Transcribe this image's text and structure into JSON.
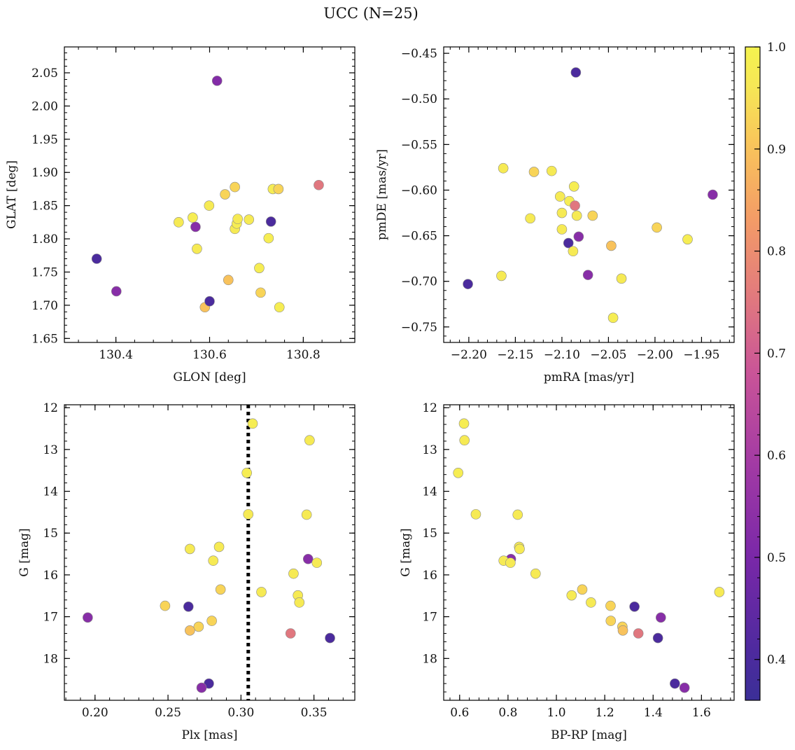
{
  "figure": {
    "title": "UCC (N=25)",
    "colorbar": {
      "min": 0.36,
      "max": 1.0,
      "ticks": [
        "0.4",
        "0.5",
        "0.6",
        "0.7",
        "0.8",
        "0.9",
        "1.0"
      ],
      "tick_values": [
        0.4,
        0.5,
        0.6,
        0.7,
        0.8,
        0.9,
        1.0
      ],
      "colormap": "plasma"
    }
  },
  "chart_data": [
    {
      "type": "scatter",
      "xlabel": "GLON [deg]",
      "ylabel": "GLAT [deg]",
      "xlim": [
        130.29,
        130.91
      ],
      "ylim": [
        1.644,
        2.089
      ],
      "invert_y": false,
      "xticks": [
        130.4,
        130.6,
        130.8
      ],
      "xtick_labels": [
        "130.4",
        "130.6",
        "130.8"
      ],
      "yticks": [
        1.65,
        1.7,
        1.75,
        1.8,
        1.85,
        1.9,
        1.95,
        2.0,
        2.05
      ],
      "ytick_labels": [
        "1.65",
        "1.70",
        "1.75",
        "1.80",
        "1.85",
        "1.90",
        "1.95",
        "2.00",
        "2.05"
      ],
      "points": [
        {
          "x": 130.616,
          "y": 2.038,
          "c": 0.52
        },
        {
          "x": 130.359,
          "y": 1.77,
          "c": 0.4
        },
        {
          "x": 130.401,
          "y": 1.721,
          "c": 0.53
        },
        {
          "x": 130.534,
          "y": 1.825,
          "c": 0.97
        },
        {
          "x": 130.564,
          "y": 1.832,
          "c": 0.98
        },
        {
          "x": 130.57,
          "y": 1.818,
          "c": 0.53
        },
        {
          "x": 130.573,
          "y": 1.785,
          "c": 0.97
        },
        {
          "x": 130.59,
          "y": 1.697,
          "c": 0.9
        },
        {
          "x": 130.599,
          "y": 1.85,
          "c": 0.97
        },
        {
          "x": 130.6,
          "y": 1.706,
          "c": 0.4
        },
        {
          "x": 130.633,
          "y": 1.867,
          "c": 0.93
        },
        {
          "x": 130.64,
          "y": 1.738,
          "c": 0.9
        },
        {
          "x": 130.654,
          "y": 1.878,
          "c": 0.93
        },
        {
          "x": 130.654,
          "y": 1.815,
          "c": 0.97
        },
        {
          "x": 130.658,
          "y": 1.823,
          "c": 0.98
        },
        {
          "x": 130.66,
          "y": 1.83,
          "c": 0.97
        },
        {
          "x": 130.684,
          "y": 1.829,
          "c": 0.97
        },
        {
          "x": 130.706,
          "y": 1.756,
          "c": 0.98
        },
        {
          "x": 130.709,
          "y": 1.719,
          "c": 0.93
        },
        {
          "x": 130.726,
          "y": 1.801,
          "c": 0.98
        },
        {
          "x": 130.731,
          "y": 1.826,
          "c": 0.4
        },
        {
          "x": 130.735,
          "y": 1.875,
          "c": 0.98
        },
        {
          "x": 130.747,
          "y": 1.875,
          "c": 0.93
        },
        {
          "x": 130.749,
          "y": 1.697,
          "c": 0.98
        },
        {
          "x": 130.833,
          "y": 1.881,
          "c": 0.75
        }
      ]
    },
    {
      "type": "scatter",
      "xlabel": "pmRA [mas/yr]",
      "ylabel": "pmDE [mas/yr]",
      "xlim": [
        -2.227,
        -1.915
      ],
      "ylim": [
        -0.767,
        -0.443
      ],
      "invert_y": false,
      "xticks": [
        -2.2,
        -2.15,
        -2.1,
        -2.05,
        -2.0,
        -1.95
      ],
      "xtick_labels": [
        "−2.20",
        "−2.15",
        "−2.10",
        "−2.05",
        "−2.00",
        "−1.95"
      ],
      "yticks": [
        -0.75,
        -0.7,
        -0.65,
        -0.6,
        -0.55,
        -0.5,
        -0.45
      ],
      "ytick_labels": [
        "−0.75",
        "−0.70",
        "−0.65",
        "−0.60",
        "−0.55",
        "−0.50",
        "−0.45"
      ],
      "points": [
        {
          "x": -2.085,
          "y": -0.471,
          "c": 0.4
        },
        {
          "x": -2.163,
          "y": -0.576,
          "c": 0.97
        },
        {
          "x": -2.13,
          "y": -0.58,
          "c": 0.93
        },
        {
          "x": -2.111,
          "y": -0.579,
          "c": 0.97
        },
        {
          "x": -2.087,
          "y": -0.596,
          "c": 0.98
        },
        {
          "x": -2.102,
          "y": -0.607,
          "c": 0.97
        },
        {
          "x": -2.092,
          "y": -0.612,
          "c": 0.98
        },
        {
          "x": -2.086,
          "y": -0.617,
          "c": 0.75
        },
        {
          "x": -1.938,
          "y": -0.605,
          "c": 0.53
        },
        {
          "x": -2.1,
          "y": -0.625,
          "c": 0.97
        },
        {
          "x": -2.084,
          "y": -0.628,
          "c": 0.97
        },
        {
          "x": -2.067,
          "y": -0.628,
          "c": 0.93
        },
        {
          "x": -2.134,
          "y": -0.631,
          "c": 0.97
        },
        {
          "x": -1.998,
          "y": -0.641,
          "c": 0.93
        },
        {
          "x": -2.1,
          "y": -0.643,
          "c": 0.97
        },
        {
          "x": -2.082,
          "y": -0.651,
          "c": 0.53
        },
        {
          "x": -1.965,
          "y": -0.654,
          "c": 0.98
        },
        {
          "x": -2.093,
          "y": -0.658,
          "c": 0.4
        },
        {
          "x": -2.047,
          "y": -0.661,
          "c": 0.9
        },
        {
          "x": -2.088,
          "y": -0.667,
          "c": 0.97
        },
        {
          "x": -2.072,
          "y": -0.693,
          "c": 0.53
        },
        {
          "x": -2.165,
          "y": -0.694,
          "c": 0.97
        },
        {
          "x": -2.036,
          "y": -0.697,
          "c": 0.97
        },
        {
          "x": -2.201,
          "y": -0.703,
          "c": 0.4
        },
        {
          "x": -2.045,
          "y": -0.74,
          "c": 0.98
        }
      ]
    },
    {
      "type": "scatter",
      "xlabel": "Plx [mas]",
      "ylabel": "G [mag]",
      "xlim": [
        0.179,
        0.378
      ],
      "ylim": [
        11.93,
        19.0
      ],
      "invert_y": true,
      "vline": 0.305,
      "xticks": [
        0.2,
        0.25,
        0.3,
        0.35
      ],
      "xtick_labels": [
        "0.20",
        "0.25",
        "0.30",
        "0.35"
      ],
      "yticks": [
        12,
        13,
        14,
        15,
        16,
        17,
        18
      ],
      "ytick_labels": [
        "12",
        "13",
        "14",
        "15",
        "16",
        "17",
        "18"
      ],
      "points": [
        {
          "x": 0.308,
          "y": 12.38,
          "c": 0.98
        },
        {
          "x": 0.347,
          "y": 12.78,
          "c": 0.97
        },
        {
          "x": 0.304,
          "y": 13.56,
          "c": 0.98
        },
        {
          "x": 0.305,
          "y": 14.55,
          "c": 0.97
        },
        {
          "x": 0.345,
          "y": 14.56,
          "c": 0.97
        },
        {
          "x": 0.265,
          "y": 15.38,
          "c": 0.97
        },
        {
          "x": 0.285,
          "y": 15.33,
          "c": 0.97
        },
        {
          "x": 0.346,
          "y": 15.62,
          "c": 0.53
        },
        {
          "x": 0.281,
          "y": 15.66,
          "c": 0.97
        },
        {
          "x": 0.352,
          "y": 15.71,
          "c": 0.97
        },
        {
          "x": 0.336,
          "y": 15.97,
          "c": 0.97
        },
        {
          "x": 0.286,
          "y": 16.35,
          "c": 0.93
        },
        {
          "x": 0.314,
          "y": 16.41,
          "c": 0.97
        },
        {
          "x": 0.339,
          "y": 16.49,
          "c": 0.97
        },
        {
          "x": 0.34,
          "y": 16.66,
          "c": 0.97
        },
        {
          "x": 0.248,
          "y": 16.74,
          "c": 0.93
        },
        {
          "x": 0.264,
          "y": 16.76,
          "c": 0.4
        },
        {
          "x": 0.195,
          "y": 17.02,
          "c": 0.53
        },
        {
          "x": 0.28,
          "y": 17.1,
          "c": 0.93
        },
        {
          "x": 0.271,
          "y": 17.24,
          "c": 0.93
        },
        {
          "x": 0.265,
          "y": 17.33,
          "c": 0.9
        },
        {
          "x": 0.334,
          "y": 17.4,
          "c": 0.75
        },
        {
          "x": 0.361,
          "y": 17.51,
          "c": 0.4
        },
        {
          "x": 0.278,
          "y": 18.6,
          "c": 0.4
        },
        {
          "x": 0.273,
          "y": 18.7,
          "c": 0.53
        }
      ]
    },
    {
      "type": "scatter",
      "xlabel": "BP-RP [mag]",
      "ylabel": "G [mag]",
      "xlim": [
        0.534,
        1.735
      ],
      "ylim": [
        11.93,
        19.0
      ],
      "invert_y": true,
      "xticks": [
        0.6,
        0.8,
        1.0,
        1.2,
        1.4,
        1.6
      ],
      "xtick_labels": [
        "0.6",
        "0.8",
        "1.0",
        "1.2",
        "1.4",
        "1.6"
      ],
      "yticks": [
        12,
        13,
        14,
        15,
        16,
        17,
        18
      ],
      "ytick_labels": [
        "12",
        "13",
        "14",
        "15",
        "16",
        "17",
        "18"
      ],
      "points": [
        {
          "x": 0.618,
          "y": 12.38,
          "c": 0.98
        },
        {
          "x": 0.62,
          "y": 12.78,
          "c": 0.97
        },
        {
          "x": 0.594,
          "y": 13.56,
          "c": 0.98
        },
        {
          "x": 0.667,
          "y": 14.55,
          "c": 0.97
        },
        {
          "x": 0.84,
          "y": 14.56,
          "c": 0.97
        },
        {
          "x": 0.846,
          "y": 15.33,
          "c": 0.97
        },
        {
          "x": 0.848,
          "y": 15.38,
          "c": 0.97
        },
        {
          "x": 0.812,
          "y": 15.62,
          "c": 0.53
        },
        {
          "x": 0.782,
          "y": 15.66,
          "c": 0.97
        },
        {
          "x": 0.81,
          "y": 15.71,
          "c": 0.97
        },
        {
          "x": 0.914,
          "y": 15.97,
          "c": 0.97
        },
        {
          "x": 1.107,
          "y": 16.35,
          "c": 0.93
        },
        {
          "x": 1.674,
          "y": 16.41,
          "c": 0.97
        },
        {
          "x": 1.063,
          "y": 16.49,
          "c": 0.97
        },
        {
          "x": 1.143,
          "y": 16.66,
          "c": 0.97
        },
        {
          "x": 1.224,
          "y": 16.74,
          "c": 0.93
        },
        {
          "x": 1.323,
          "y": 16.76,
          "c": 0.4
        },
        {
          "x": 1.432,
          "y": 17.02,
          "c": 0.53
        },
        {
          "x": 1.225,
          "y": 17.1,
          "c": 0.93
        },
        {
          "x": 1.273,
          "y": 17.24,
          "c": 0.93
        },
        {
          "x": 1.275,
          "y": 17.33,
          "c": 0.9
        },
        {
          "x": 1.339,
          "y": 17.4,
          "c": 0.75
        },
        {
          "x": 1.42,
          "y": 17.51,
          "c": 0.4
        },
        {
          "x": 1.49,
          "y": 18.6,
          "c": 0.4
        },
        {
          "x": 1.53,
          "y": 18.7,
          "c": 0.53
        }
      ]
    }
  ]
}
